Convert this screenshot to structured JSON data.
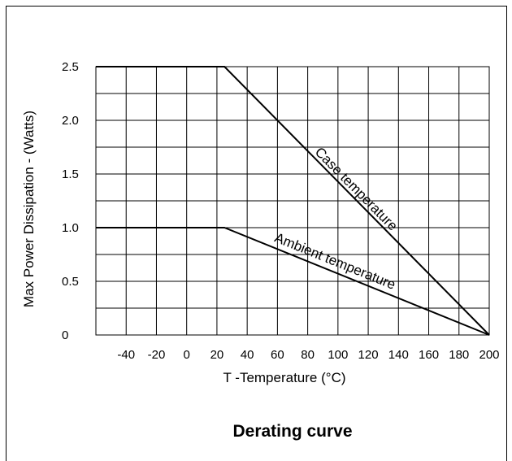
{
  "chart_data": {
    "type": "line",
    "title": "Derating curve",
    "xlabel": "T -Temperature (°C)",
    "ylabel": "Max Power Dissipation - (Watts)",
    "xlim": [
      -60,
      200
    ],
    "ylim": [
      0,
      2.5
    ],
    "x_ticks": [
      -40,
      -20,
      0,
      20,
      40,
      60,
      80,
      100,
      120,
      140,
      160,
      180,
      200
    ],
    "y_ticks": [
      0,
      0.5,
      1.0,
      1.5,
      2.0,
      2.5
    ],
    "x_tick_labels": [
      "-40",
      "-20",
      "0",
      "20",
      "40",
      "60",
      "80",
      "100",
      "120",
      "140",
      "160",
      "180",
      "200"
    ],
    "y_tick_labels": [
      "0",
      "0.5",
      "1.0",
      "1.5",
      "2.0",
      "2.5"
    ],
    "grid": true,
    "series": [
      {
        "name": "Case temperature",
        "x": [
          -60,
          25,
          200
        ],
        "y": [
          2.5,
          2.5,
          0
        ]
      },
      {
        "name": "Ambient temperature",
        "x": [
          -60,
          25,
          200
        ],
        "y": [
          1.0,
          1.0,
          0
        ]
      }
    ]
  }
}
